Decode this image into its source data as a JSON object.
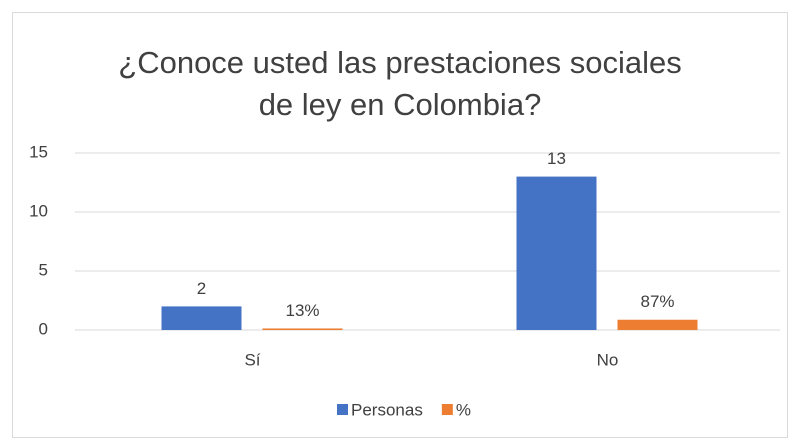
{
  "chart_data": {
    "type": "bar",
    "title": "¿Conoce usted las prestaciones sociales de ley en Colombia?",
    "categories": [
      "Sí",
      "No"
    ],
    "series": [
      {
        "name": "Personas",
        "color": "#4472c4",
        "values": [
          2,
          13
        ]
      },
      {
        "name": "%",
        "color": "#ed7d31",
        "values": [
          0.13,
          0.87
        ],
        "value_labels": [
          "13%",
          "87%"
        ]
      }
    ],
    "ylim": [
      0,
      15
    ],
    "yticks": [
      0,
      5,
      10,
      15
    ],
    "grid": true,
    "legend": "bottom"
  }
}
